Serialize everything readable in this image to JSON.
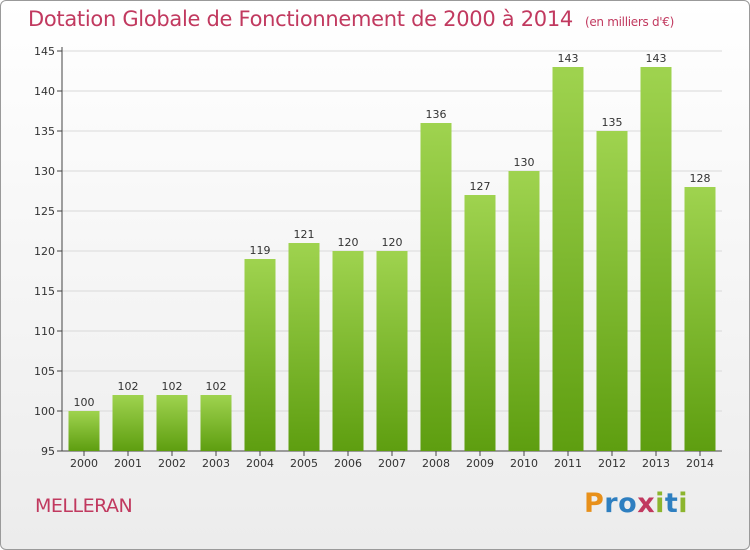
{
  "title": "Dotation Globale de Fonctionnement de 2000 à 2014",
  "subtitle": "(en milliers d'€)",
  "commune": "MELLERAN",
  "logo": {
    "letters": [
      "P",
      "r",
      "o",
      "x",
      "i",
      "t",
      "i"
    ],
    "colors": [
      "#e8901a",
      "#2e7fc0",
      "#2e7fc0",
      "#c1395f",
      "#8cb52e",
      "#2e7fc0",
      "#8cb52e"
    ]
  },
  "colors": {
    "title": "#c1395f",
    "bar_top": "#9fd34f",
    "bar_bottom": "#5e9e10",
    "grid": "#d9d9d9",
    "axis": "#444444"
  },
  "chart_data": {
    "type": "bar",
    "categories": [
      "2000",
      "2001",
      "2002",
      "2003",
      "2004",
      "2005",
      "2006",
      "2007",
      "2008",
      "2009",
      "2010",
      "2011",
      "2012",
      "2013",
      "2014"
    ],
    "values": [
      100,
      102,
      102,
      102,
      119,
      121,
      120,
      120,
      136,
      127,
      130,
      143,
      135,
      143,
      128
    ],
    "data_labels": [
      "100",
      "102",
      "102",
      "102",
      "119",
      "121",
      "120",
      "120",
      "136",
      "127",
      "130",
      "143",
      "135",
      "143",
      "128"
    ],
    "yticks": [
      95,
      100,
      105,
      110,
      115,
      120,
      125,
      130,
      135,
      140,
      145
    ],
    "ylim": [
      95,
      145
    ],
    "grid": true
  }
}
